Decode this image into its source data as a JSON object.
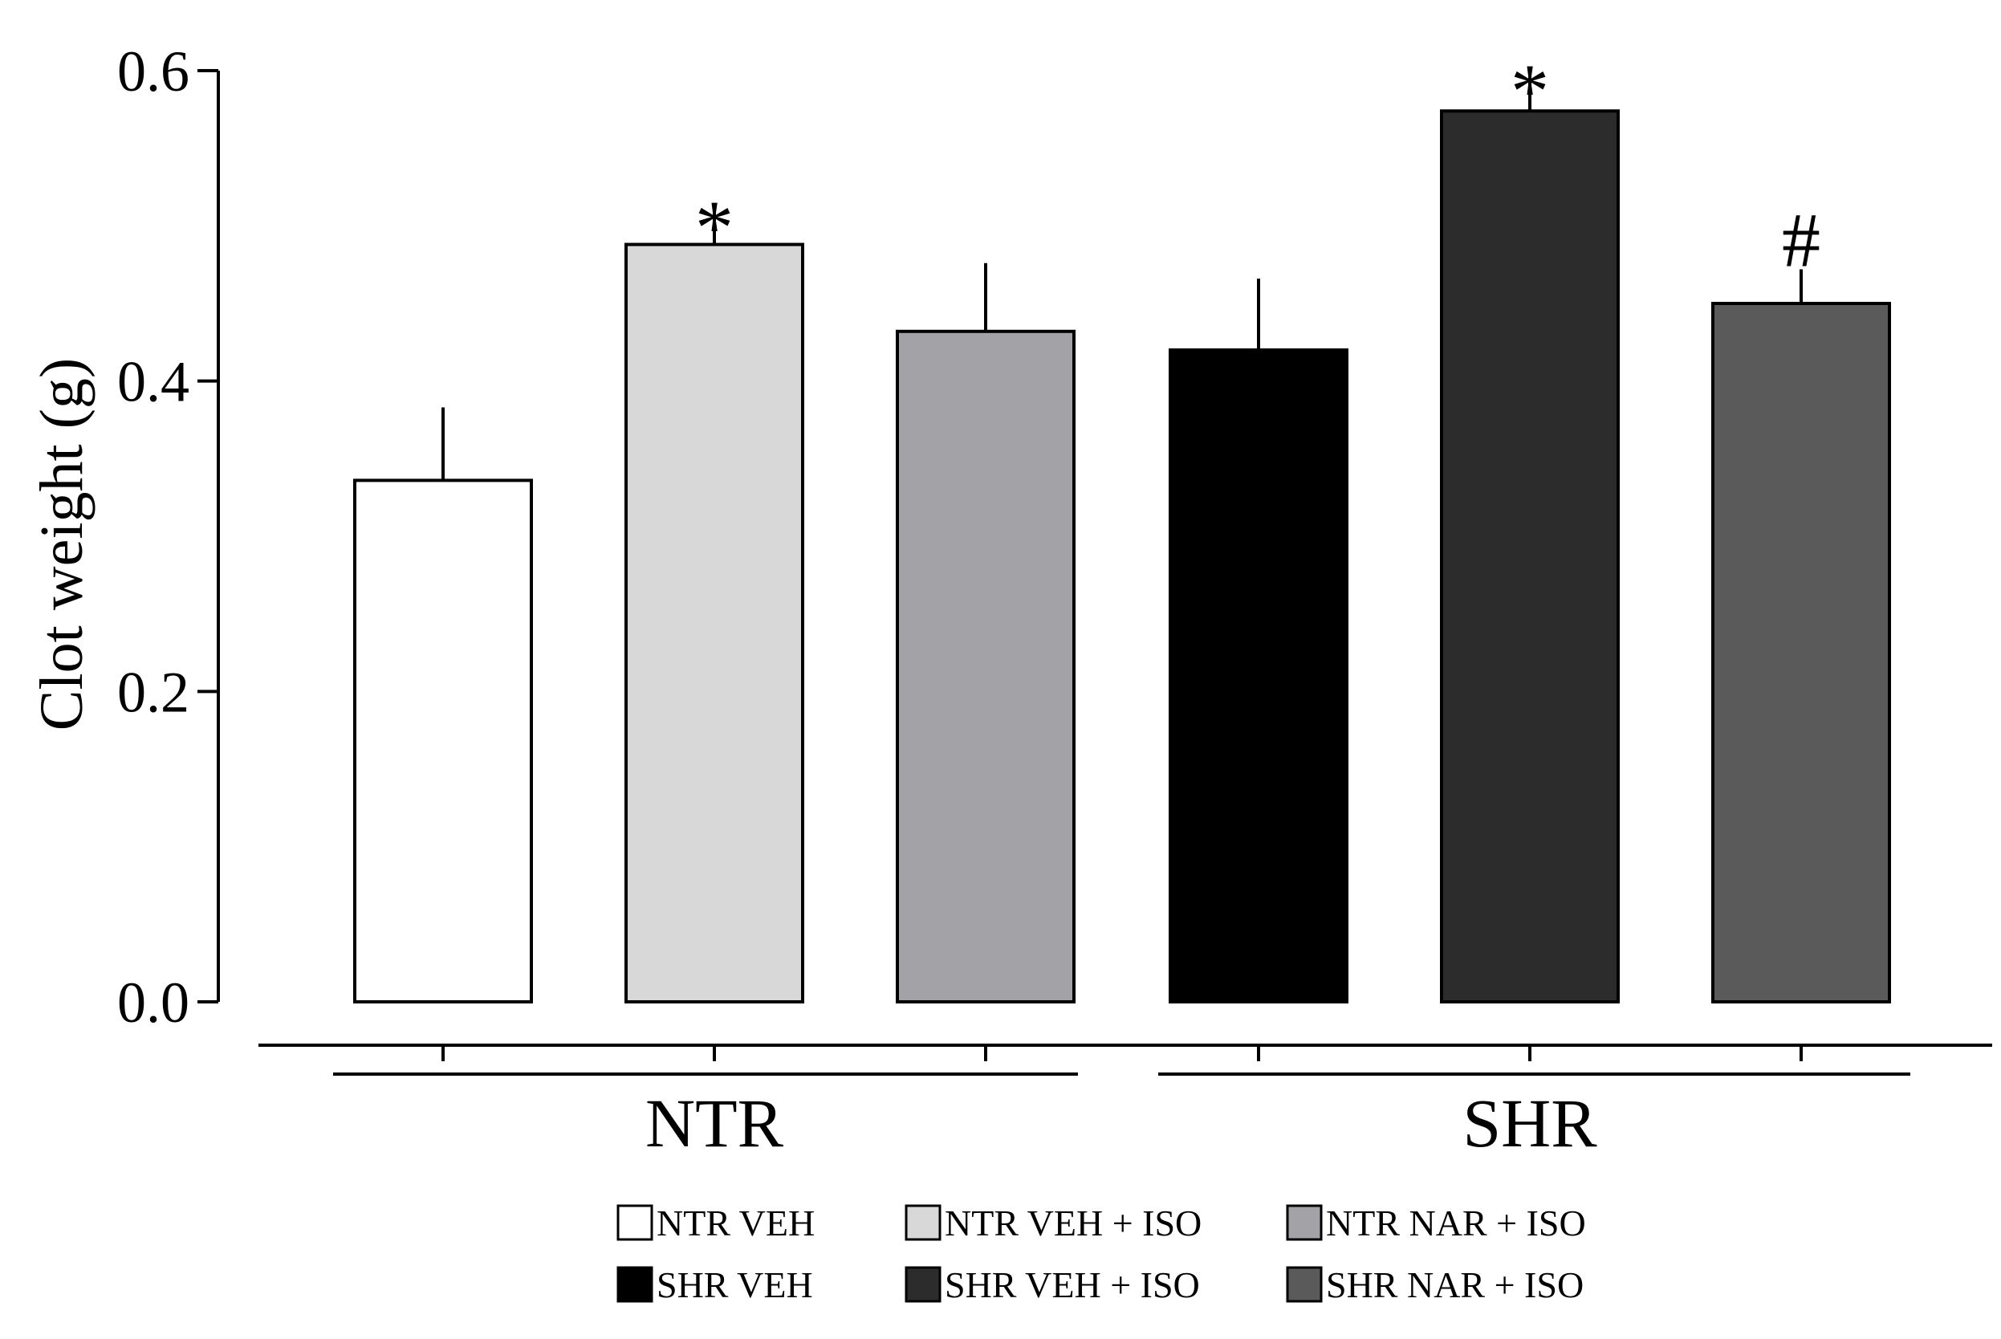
{
  "chart_data": {
    "type": "bar",
    "title": "",
    "xlabel": "",
    "ylabel": "Clot weight (g)",
    "ylim": [
      0,
      0.6
    ],
    "yticks": [
      0.0,
      0.2,
      0.4,
      0.6
    ],
    "ytick_labels": [
      "0.0",
      "0.2",
      "0.4",
      "0.6"
    ],
    "groups": [
      {
        "label": "NTR",
        "bars": [
          0,
          1,
          2
        ]
      },
      {
        "label": "SHR",
        "bars": [
          3,
          4,
          5
        ]
      }
    ],
    "bars": [
      {
        "name": "NTR VEH",
        "value": 0.336,
        "error": 0.047,
        "color": "#ffffff",
        "annotation": ""
      },
      {
        "name": "NTR VEH + ISO",
        "value": 0.488,
        "error": 0.025,
        "color": "#d8d8d8",
        "annotation": "*"
      },
      {
        "name": "NTR NAR + ISO",
        "value": 0.432,
        "error": 0.044,
        "color": "#a3a2a7",
        "annotation": ""
      },
      {
        "name": "SHR VEH",
        "value": 0.42,
        "error": 0.046,
        "color": "#000000",
        "annotation": ""
      },
      {
        "name": "SHR VEH + ISO",
        "value": 0.574,
        "error": 0.027,
        "color": "#2c2c2c",
        "annotation": "*"
      },
      {
        "name": "SHR NAR + ISO",
        "value": 0.45,
        "error": 0.022,
        "color": "#5a5a5a",
        "annotation": "#"
      }
    ],
    "legend": {
      "placement": "bottom",
      "rows": [
        [
          "NTR VEH",
          "NTR VEH + ISO",
          "NTR NAR + ISO"
        ],
        [
          "SHR VEH",
          "SHR VEH + ISO",
          "SHR NAR + ISO"
        ]
      ]
    }
  }
}
